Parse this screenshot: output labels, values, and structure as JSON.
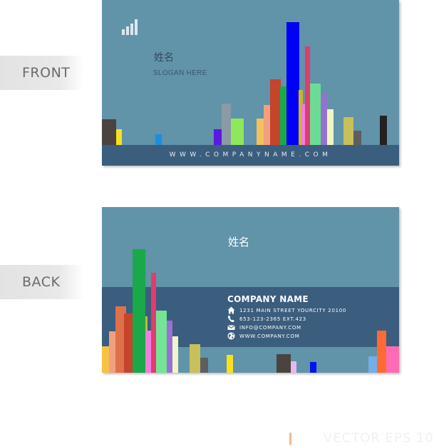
{
  "labels": {
    "front": "FRONT",
    "back": "BACK"
  },
  "front": {
    "name": "姓名",
    "slogan": "SLOGAN HERE",
    "website": "WWW.COMPANYNAME.COM",
    "icon": "signal-bars-icon"
  },
  "back": {
    "name": "姓名",
    "company_name": "COMPANY NAME",
    "contacts": [
      {
        "icon": "home-icon",
        "text": "1231 MAIN STREET YOURCITY 20100"
      },
      {
        "icon": "phone-icon",
        "text": "653-123-2365 EXT.423"
      },
      {
        "icon": "envelope-icon",
        "text": "INFO@COMPANY.COM"
      },
      {
        "icon": "globe-icon",
        "text": "WWW.COMPANY.COM"
      }
    ]
  },
  "watermark": {
    "text": "VECTOR EPS 10"
  },
  "colors": {
    "card_background": "#6193a9",
    "band": "#3b5d7e",
    "front_bars": [
      "#4a4340",
      "#f8e020",
      "#1a8fdc",
      "#5a18e0",
      "#8a9aa6",
      "#8ee85c",
      "#f2c25c",
      "#f0a07c",
      "#c4442c",
      "#1aa84a",
      "#0000f8",
      "#ccb428",
      "#f07ce4",
      "#e23c6c",
      "#6cdc94",
      "#9274cc",
      "#f2f4c4",
      "#c8c05c",
      "#5e5e5e",
      "#262121"
    ],
    "back_bars": [
      "#f6c244",
      "#f0a080",
      "#e0704c",
      "#c4442c",
      "#c8b43c",
      "#1aa84a",
      "#f07ce4",
      "#e23c6c",
      "#74e496",
      "#9a70d4",
      "#eef6c8",
      "#c8c05c",
      "#5e5e5e",
      "#f8e020",
      "#4a4340",
      "#e6b8f0",
      "#0014f0",
      "#74aee6",
      "#ff6a34",
      "#ff6cb4"
    ]
  }
}
